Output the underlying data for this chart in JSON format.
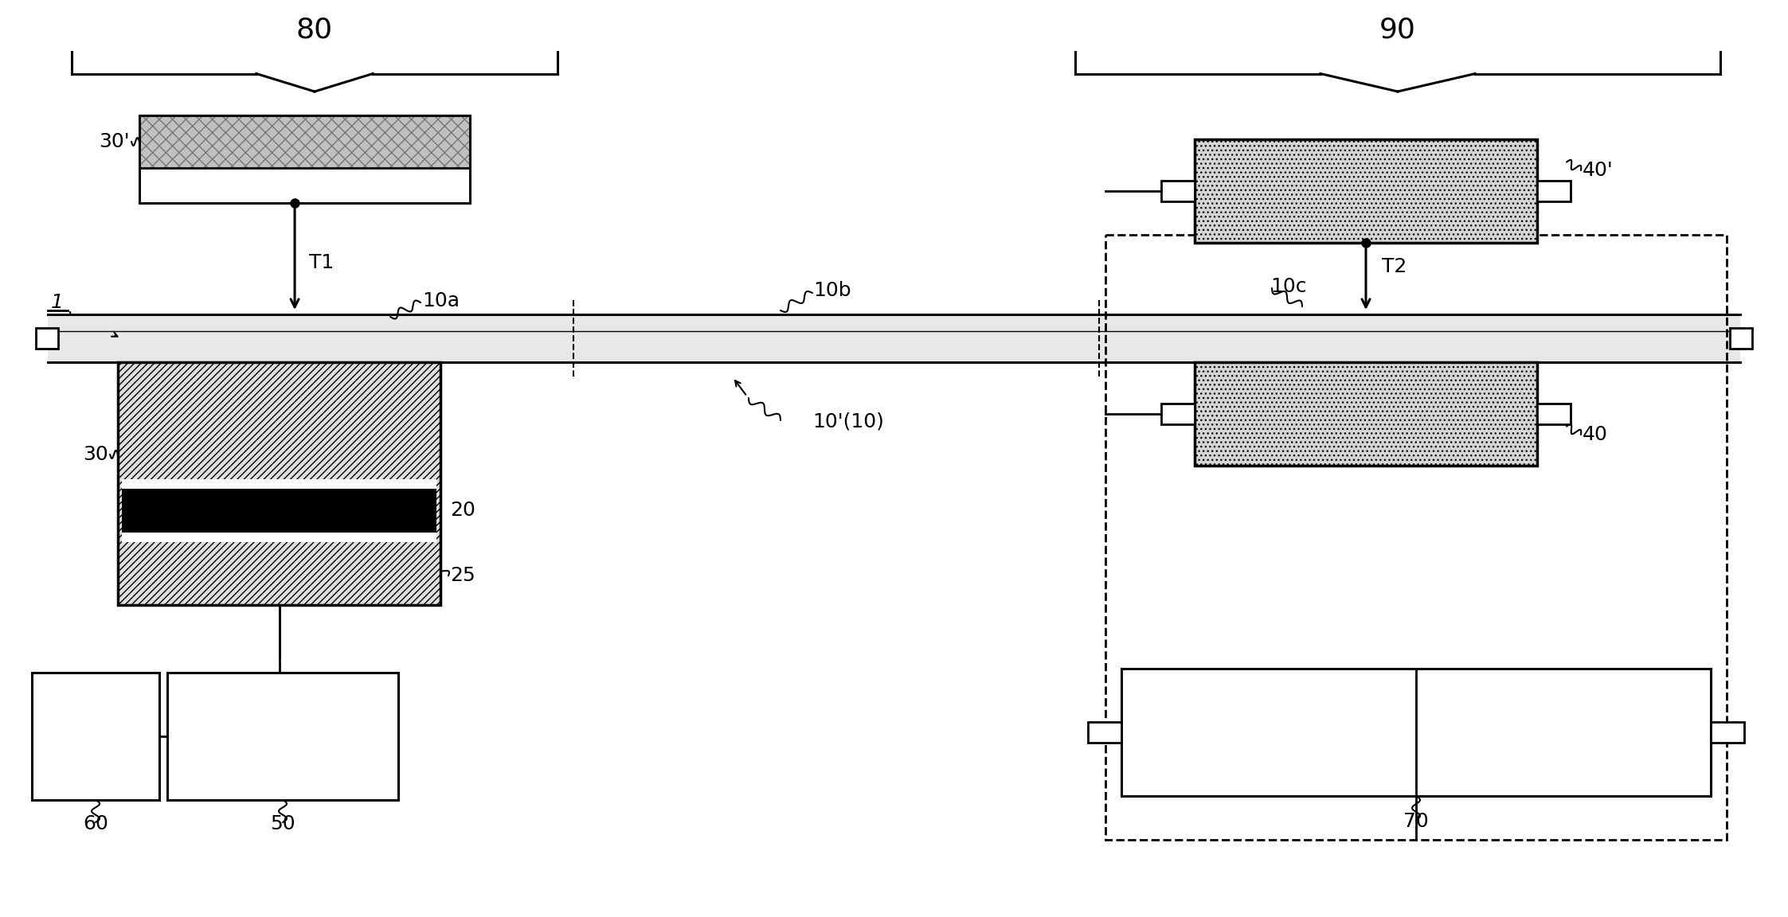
{
  "bg_color": "#ffffff",
  "label_80": "80",
  "label_90": "90",
  "label_30p": "30'",
  "label_T1": "T1",
  "label_10a": "10a",
  "label_10b": "10b",
  "label_10c": "10c",
  "label_10p10": "10'(10)",
  "label_30": "30",
  "label_20": "20",
  "label_25": "25",
  "label_60": "60",
  "label_50": "50",
  "label_40p": "40'",
  "label_T2": "T2",
  "label_40": "40",
  "label_70": "70",
  "label_1": "1"
}
